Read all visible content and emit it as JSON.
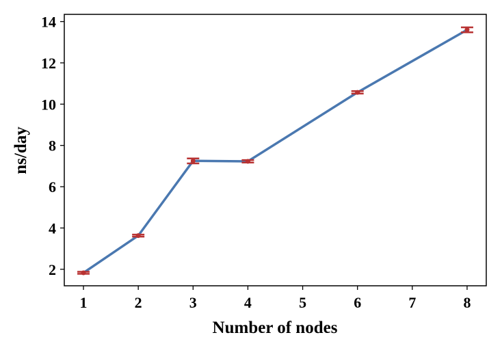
{
  "chart_data": {
    "type": "line",
    "title": "",
    "xlabel": "Number of nodes",
    "ylabel": "ns/day",
    "x": [
      1,
      2,
      3,
      4,
      6,
      8
    ],
    "xticks": [
      1,
      2,
      3,
      4,
      5,
      6,
      7,
      8
    ],
    "yticks": [
      2,
      4,
      6,
      8,
      10,
      12,
      14
    ],
    "xlim": [
      0.65,
      8.35
    ],
    "ylim": [
      1.2,
      14.35
    ],
    "grid": false,
    "series": [
      {
        "values": [
          1.83,
          3.63,
          7.25,
          7.23,
          10.57,
          13.6
        ],
        "errors": [
          0.05,
          0.05,
          0.12,
          0.06,
          0.06,
          0.12
        ],
        "line_color": "#4a78b0",
        "marker_color": "#b83232"
      }
    ]
  }
}
